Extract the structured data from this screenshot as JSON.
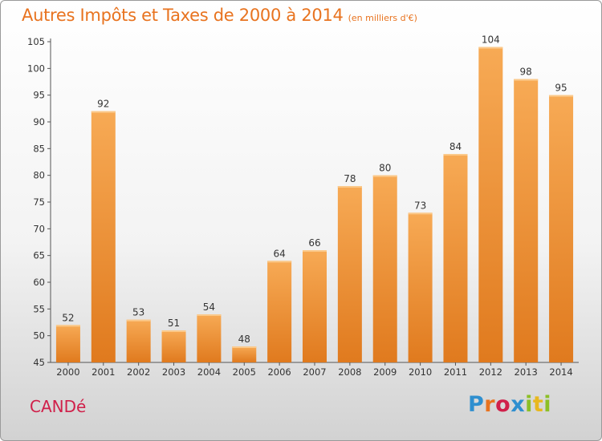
{
  "header": {
    "title": "Autres Impôts et Taxes de 2000 à 2014",
    "subtitle": "(en milliers d'€)"
  },
  "footer": {
    "commune": "CANDé",
    "logo_letters": [
      "P",
      "r",
      "o",
      "x",
      "i",
      "t",
      "i"
    ]
  },
  "colors": {
    "bar_light": "#f7aa55",
    "bar_dark": "#e07a1e",
    "title": "#e8731f",
    "commune": "#d0204a"
  },
  "chart_data": {
    "type": "bar",
    "categories": [
      "2000",
      "2001",
      "2002",
      "2003",
      "2004",
      "2005",
      "2006",
      "2007",
      "2008",
      "2009",
      "2010",
      "2011",
      "2012",
      "2013",
      "2014"
    ],
    "values": [
      52,
      92,
      53,
      51,
      54,
      48,
      64,
      66,
      78,
      80,
      73,
      84,
      104,
      98,
      95
    ],
    "data_labels": [
      "52",
      "92",
      "53",
      "51",
      "54",
      "48",
      "64",
      "66",
      "78",
      "80",
      "73",
      "84",
      "104",
      "98",
      "95"
    ],
    "title": "Autres Impôts et Taxes de 2000 à 2014",
    "ylim": [
      45,
      105
    ],
    "yticks": [
      45,
      50,
      55,
      60,
      65,
      70,
      75,
      80,
      85,
      90,
      95,
      100,
      105
    ],
    "grid": false
  }
}
